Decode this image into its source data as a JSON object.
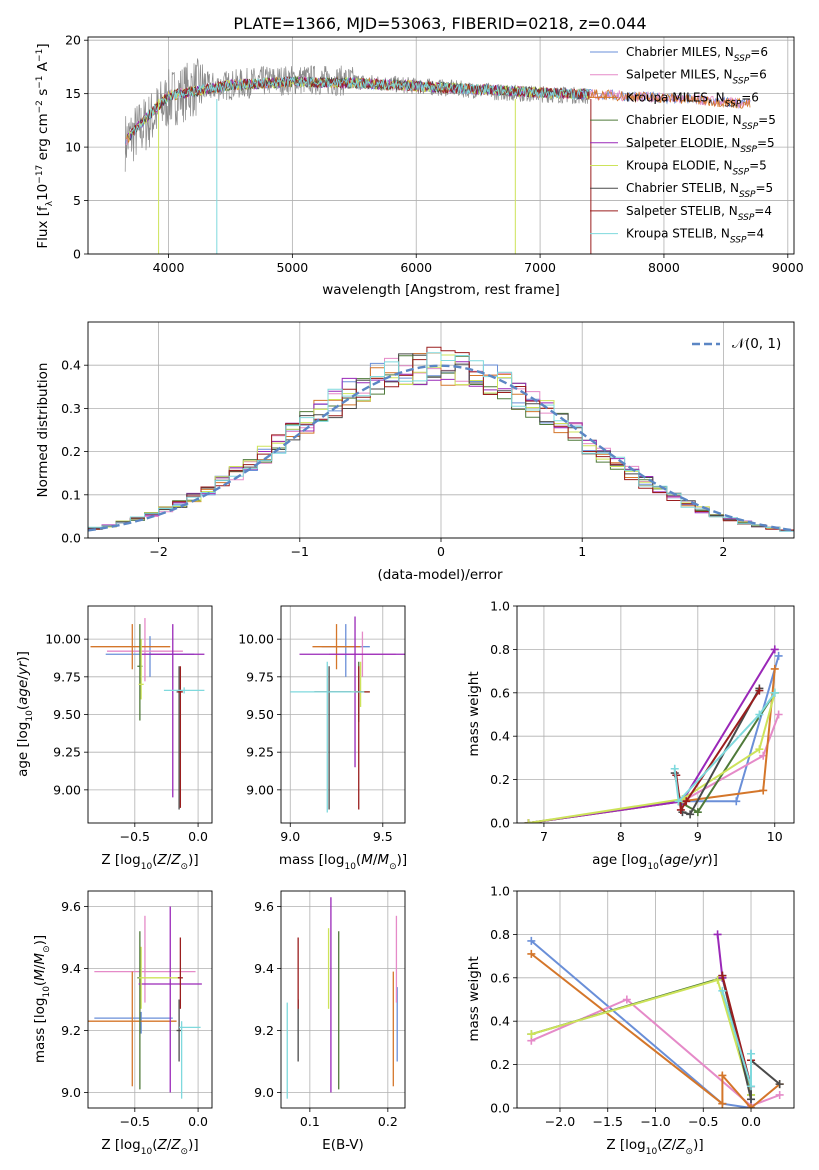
{
  "title": "PLATE=1366, MJD=53063, FIBERID=0218, z=0.044",
  "colors": {
    "Chabrier MILES": "#6a8fd8",
    "Salpeter MILES": "#e58ac8",
    "Kroupa MILES": "#d4762a",
    "Chabrier ELODIE": "#4f7a3a",
    "Salpeter ELODIE": "#9a28b8",
    "Kroupa ELODIE": "#cde35a",
    "Chabrier STELIB": "#4a4a4a",
    "Salpeter STELIB": "#9a1e1e",
    "Kroupa STELIB": "#7fd9dd"
  },
  "legend_spectrum": [
    {
      "name": "Chabrier MILES",
      "nssp": "6"
    },
    {
      "name": "Salpeter MILES",
      "nssp": "6"
    },
    {
      "name": "Kroupa MILES",
      "nssp": "6"
    },
    {
      "name": "Chabrier ELODIE",
      "nssp": "5"
    },
    {
      "name": "Salpeter ELODIE",
      "nssp": "5"
    },
    {
      "name": "Kroupa ELODIE",
      "nssp": "5"
    },
    {
      "name": "Chabrier STELIB",
      "nssp": "5"
    },
    {
      "name": "Salpeter STELIB",
      "nssp": "4"
    },
    {
      "name": "Kroupa STELIB",
      "nssp": "4"
    }
  ],
  "chart_data": [
    {
      "id": "spectrum",
      "type": "line",
      "xlabel": "wavelength [Angstrom, rest frame]",
      "ylabel": "Flux [f_λ 10^-17 erg cm^-2 s^-1 A^-1]",
      "xlim": [
        3350,
        9050
      ],
      "ylim": [
        0,
        20.3
      ],
      "xticks": [
        4000,
        5000,
        6000,
        7000,
        8000,
        9000
      ],
      "yticks": [
        0,
        5,
        10,
        15,
        20
      ],
      "data_continuum": {
        "x": [
          3650,
          3750,
          3850,
          4000,
          4200,
          4500,
          4800,
          5100,
          5400,
          5700,
          6000,
          6300,
          6600,
          6900,
          7200,
          7400
        ],
        "y": [
          10.5,
          11.5,
          12.5,
          14.5,
          15.5,
          15.8,
          16.2,
          16.3,
          16.2,
          16.0,
          15.7,
          15.5,
          15.2,
          15.0,
          14.9,
          14.8
        ]
      },
      "model_continuum": {
        "x": [
          3650,
          3800,
          4000,
          4500,
          5000,
          5500,
          6000,
          6500,
          7000,
          7500,
          8000,
          8400,
          8700
        ],
        "y": [
          10.5,
          12.5,
          14.8,
          15.8,
          16.1,
          16.0,
          15.7,
          15.4,
          15.1,
          14.9,
          14.6,
          14.3,
          14.0
        ]
      },
      "legend_position": "top-right"
    },
    {
      "id": "residuals",
      "type": "histogram",
      "xlabel": "(data-model)/error",
      "ylabel": "Normed distribution",
      "xlim": [
        -2.5,
        2.5
      ],
      "ylim": [
        0,
        0.5
      ],
      "xticks": [
        -2,
        -1,
        0,
        1,
        2
      ],
      "yticks": [
        0,
        0.1,
        0.2,
        0.3,
        0.4
      ],
      "reference": {
        "name": "𝒩(0, 1)",
        "mean": 0,
        "sigma": 1
      },
      "bins": {
        "start": -2.5,
        "width": 0.1,
        "count": 50
      },
      "legend_position": "top-right"
    },
    {
      "id": "age_vs_Z",
      "type": "errorbar",
      "xlabel": "Z [log10(Z/Z⊙)]",
      "ylabel": "age [log10(age/yr)]",
      "xlim": [
        -0.87,
        0.11
      ],
      "ylim": [
        8.78,
        10.22
      ],
      "xticks": [
        -0.5,
        0.0
      ],
      "yticks": [
        9.0,
        9.25,
        9.5,
        9.75,
        10.0
      ],
      "points": [
        {
          "series": "Chabrier MILES",
          "x": -0.38,
          "xerr": [
            0.35,
            0.35
          ],
          "y": 9.9,
          "yerr": [
            0.15,
            0.12
          ]
        },
        {
          "series": "Salpeter MILES",
          "x": -0.42,
          "xerr": [
            0.3,
            0.3
          ],
          "y": 9.92,
          "yerr": [
            0.2,
            0.22
          ]
        },
        {
          "series": "Kroupa MILES",
          "x": -0.52,
          "xerr": [
            0.33,
            0.3
          ],
          "y": 9.95,
          "yerr": [
            0.15,
            0.15
          ]
        },
        {
          "series": "Chabrier ELODIE",
          "x": -0.46,
          "xerr": [
            0.02,
            0.02
          ],
          "y": 9.82,
          "yerr": [
            0.36,
            0.28
          ]
        },
        {
          "series": "Salpeter ELODIE",
          "x": -0.2,
          "xerr": [
            0.25,
            0.25
          ],
          "y": 9.9,
          "yerr": [
            0.95,
            0.2
          ]
        },
        {
          "series": "Kroupa ELODIE",
          "x": -0.45,
          "xerr": [
            0.02,
            0.02
          ],
          "y": 9.7,
          "yerr": [
            0.1,
            0.3
          ]
        },
        {
          "series": "Chabrier STELIB",
          "x": -0.15,
          "xerr": [
            0.02,
            0.02
          ],
          "y": 9.65,
          "yerr": [
            0.78,
            0.17
          ]
        },
        {
          "series": "Salpeter STELIB",
          "x": -0.14,
          "xerr": [
            0.02,
            0.02
          ],
          "y": 9.65,
          "yerr": [
            0.77,
            0.17
          ]
        },
        {
          "series": "Kroupa STELIB",
          "x": -0.11,
          "xerr": [
            0.16,
            0.16
          ],
          "y": 9.66,
          "yerr": [
            0.02,
            0.02
          ]
        }
      ]
    },
    {
      "id": "age_vs_mass",
      "type": "errorbar",
      "xlabel": "mass [log10(M/M⊙)]",
      "ylabel": "",
      "xlim": [
        8.95,
        9.62
      ],
      "ylim": [
        8.78,
        10.22
      ],
      "xticks": [
        9.0,
        9.5
      ],
      "yticks": [
        9.0,
        9.25,
        9.5,
        9.75,
        10.0
      ],
      "points": [
        {
          "series": "Chabrier MILES",
          "x": 9.3,
          "xerr": [
            0.13,
            0.13
          ],
          "y": 9.95,
          "yerr": [
            0.2,
            0.15
          ]
        },
        {
          "series": "Salpeter MILES",
          "x": 9.39,
          "xerr": [
            0.18,
            0.18
          ],
          "y": 9.9,
          "yerr": [
            0.15,
            0.15
          ]
        },
        {
          "series": "Kroupa MILES",
          "x": 9.25,
          "xerr": [
            0.13,
            0.13
          ],
          "y": 9.95,
          "yerr": [
            0.15,
            0.15
          ]
        },
        {
          "series": "Chabrier ELODIE",
          "x": 9.37,
          "xerr": [
            0.02,
            0.02
          ],
          "y": 9.65,
          "yerr": [
            0.2,
            0.2
          ]
        },
        {
          "series": "Salpeter ELODIE",
          "x": 9.35,
          "xerr": [
            0.3,
            0.3
          ],
          "y": 9.9,
          "yerr": [
            0.75,
            0.25
          ]
        },
        {
          "series": "Kroupa ELODIE",
          "x": 9.38,
          "xerr": [
            0.05,
            0.05
          ],
          "y": 9.65,
          "yerr": [
            0.1,
            0.2
          ]
        },
        {
          "series": "Chabrier STELIB",
          "x": 9.21,
          "xerr": [
            0.08,
            0.12
          ],
          "y": 9.65,
          "yerr": [
            0.78,
            0.17
          ]
        },
        {
          "series": "Salpeter STELIB",
          "x": 9.37,
          "xerr": [
            0.02,
            0.06
          ],
          "y": 9.65,
          "yerr": [
            0.78,
            0.17
          ]
        },
        {
          "series": "Kroupa STELIB",
          "x": 9.2,
          "xerr": [
            0.2,
            0.2
          ],
          "y": 9.65,
          "yerr": [
            0.8,
            0.2
          ]
        }
      ]
    },
    {
      "id": "mass_weight_vs_age",
      "type": "line",
      "xlabel": "age [log10(age/yr)]",
      "ylabel": "mass weight",
      "xlim": [
        6.65,
        10.25
      ],
      "ylim": [
        0,
        1
      ],
      "xticks": [
        7,
        8,
        9,
        10
      ],
      "yticks": [
        0,
        0.2,
        0.4,
        0.6,
        0.8,
        1.0
      ],
      "series": [
        {
          "name": "Chabrier MILES",
          "x": [
            6.8,
            8.8,
            9.5,
            10.05
          ],
          "y": [
            0.0,
            0.1,
            0.1,
            0.77
          ]
        },
        {
          "name": "Salpeter MILES",
          "x": [
            6.8,
            8.8,
            9.85,
            10.05
          ],
          "y": [
            0.0,
            0.1,
            0.31,
            0.5
          ]
        },
        {
          "name": "Kroupa MILES",
          "x": [
            6.8,
            8.8,
            9.85,
            10.0
          ],
          "y": [
            0.0,
            0.1,
            0.15,
            0.71
          ]
        },
        {
          "name": "Chabrier ELODIE",
          "x": [
            6.8,
            8.75,
            9.0,
            10.0
          ],
          "y": [
            0.0,
            0.1,
            0.05,
            0.6
          ]
        },
        {
          "name": "Salpeter ELODIE",
          "x": [
            6.8,
            8.8,
            10.0
          ],
          "y": [
            0.0,
            0.1,
            0.8
          ]
        },
        {
          "name": "Kroupa ELODIE",
          "x": [
            6.8,
            8.8,
            9.8,
            10.0
          ],
          "y": [
            0.0,
            0.11,
            0.34,
            0.6
          ]
        },
        {
          "name": "Chabrier STELIB",
          "x": [
            8.7,
            8.8,
            8.9,
            9.8
          ],
          "y": [
            0.23,
            0.05,
            0.04,
            0.62
          ]
        },
        {
          "name": "Salpeter STELIB",
          "x": [
            8.72,
            8.78,
            8.85,
            9.8
          ],
          "y": [
            0.22,
            0.06,
            0.1,
            0.61
          ]
        },
        {
          "name": "Kroupa STELIB",
          "x": [
            8.7,
            8.75,
            9.8,
            10.0
          ],
          "y": [
            0.25,
            0.1,
            0.5,
            0.6
          ]
        }
      ]
    },
    {
      "id": "mass_vs_Z",
      "type": "errorbar",
      "xlabel": "Z [log10(Z/Z⊙)]",
      "ylabel": "mass [log10(M/M⊙)]",
      "xlim": [
        -0.87,
        0.11
      ],
      "ylim": [
        8.95,
        9.65
      ],
      "xticks": [
        -0.5,
        0.0
      ],
      "yticks": [
        9.0,
        9.2,
        9.4,
        9.6
      ],
      "points": [
        {
          "series": "Chabrier MILES",
          "x": -0.45,
          "xerr": [
            0.37,
            0.25
          ],
          "y": 9.24,
          "yerr": [
            0.05,
            0.02
          ]
        },
        {
          "series": "Salpeter MILES",
          "x": -0.42,
          "xerr": [
            0.4,
            0.4
          ],
          "y": 9.39,
          "yerr": [
            0.1,
            0.18
          ]
        },
        {
          "series": "Kroupa MILES",
          "x": -0.52,
          "xerr": [
            0.35,
            0.35
          ],
          "y": 9.23,
          "yerr": [
            0.21,
            0.16
          ]
        },
        {
          "series": "Chabrier ELODIE",
          "x": -0.46,
          "xerr": [
            0.02,
            0.02
          ],
          "y": 9.37,
          "yerr": [
            0.36,
            0.15
          ]
        },
        {
          "series": "Salpeter ELODIE",
          "x": -0.22,
          "xerr": [
            0.25,
            0.25
          ],
          "y": 9.35,
          "yerr": [
            0.35,
            0.25
          ]
        },
        {
          "series": "Kroupa ELODIE",
          "x": -0.45,
          "xerr": [
            0.02,
            0.3
          ],
          "y": 9.37,
          "yerr": [
            0.1,
            0.1
          ]
        },
        {
          "series": "Chabrier STELIB",
          "x": -0.15,
          "xerr": [
            0.02,
            0.02
          ],
          "y": 9.2,
          "yerr": [
            0.1,
            0.1
          ]
        },
        {
          "series": "Salpeter STELIB",
          "x": -0.14,
          "xerr": [
            0.02,
            0.02
          ],
          "y": 9.37,
          "yerr": [
            0.1,
            0.13
          ]
        },
        {
          "series": "Kroupa STELIB",
          "x": -0.13,
          "xerr": [
            0.02,
            0.15
          ],
          "y": 9.21,
          "yerr": [
            0.23,
            0.02
          ]
        }
      ]
    },
    {
      "id": "mass_vs_ebv",
      "type": "errorbar",
      "xlabel": "E(B-V)",
      "ylabel": "",
      "xlim": [
        0.063,
        0.222
      ],
      "ylim": [
        8.95,
        9.65
      ],
      "xticks": [
        0.1,
        0.2
      ],
      "yticks": [
        9.0,
        9.2,
        9.4,
        9.6
      ],
      "points": [
        {
          "series": "Chabrier MILES",
          "x": 0.212,
          "xerr": [
            0,
            0
          ],
          "y": 9.24,
          "yerr": [
            0.14,
            0.1
          ]
        },
        {
          "series": "Salpeter MILES",
          "x": 0.211,
          "xerr": [
            0,
            0
          ],
          "y": 9.39,
          "yerr": [
            0.1,
            0.18
          ]
        },
        {
          "series": "Kroupa MILES",
          "x": 0.207,
          "xerr": [
            0,
            0
          ],
          "y": 9.23,
          "yerr": [
            0.21,
            0.16
          ]
        },
        {
          "series": "Chabrier ELODIE",
          "x": 0.137,
          "xerr": [
            0,
            0
          ],
          "y": 9.37,
          "yerr": [
            0.36,
            0.15
          ]
        },
        {
          "series": "Salpeter ELODIE",
          "x": 0.127,
          "xerr": [
            0,
            0
          ],
          "y": 9.35,
          "yerr": [
            0.35,
            0.28
          ]
        },
        {
          "series": "Kroupa ELODIE",
          "x": 0.124,
          "xerr": [
            0,
            0
          ],
          "y": 9.37,
          "yerr": [
            0.1,
            0.16
          ]
        },
        {
          "series": "Chabrier STELIB",
          "x": 0.085,
          "xerr": [
            0,
            0
          ],
          "y": 9.2,
          "yerr": [
            0.1,
            0.1
          ]
        },
        {
          "series": "Salpeter STELIB",
          "x": 0.085,
          "xerr": [
            0,
            0
          ],
          "y": 9.37,
          "yerr": [
            0.1,
            0.13
          ]
        },
        {
          "series": "Kroupa STELIB",
          "x": 0.071,
          "xerr": [
            0,
            0
          ],
          "y": 9.21,
          "yerr": [
            0.23,
            0.08
          ]
        }
      ]
    },
    {
      "id": "mass_weight_vs_Z",
      "type": "line",
      "xlabel": "Z [log10(Z/Z⊙)]",
      "ylabel": "mass weight",
      "xlim": [
        -2.45,
        0.45
      ],
      "ylim": [
        0,
        1
      ],
      "xticks": [
        -2.0,
        -1.5,
        -1.0,
        -0.5,
        0.0
      ],
      "yticks": [
        0,
        0.2,
        0.4,
        0.6,
        0.8,
        1.0
      ],
      "series": [
        {
          "name": "Chabrier MILES",
          "x": [
            -2.3,
            -0.3,
            0.0,
            0.0
          ],
          "y": [
            0.77,
            0.02,
            0.0,
            0.25
          ]
        },
        {
          "name": "Salpeter MILES",
          "x": [
            -2.3,
            -1.3,
            0.0,
            0.3
          ],
          "y": [
            0.31,
            0.5,
            0.01,
            0.06
          ]
        },
        {
          "name": "Kroupa MILES",
          "x": [
            -2.3,
            -0.3,
            -0.3,
            0.0,
            0.3
          ],
          "y": [
            0.71,
            0.02,
            0.15,
            0.0,
            0.11
          ]
        },
        {
          "name": "Chabrier ELODIE",
          "x": [
            -2.3,
            -0.3,
            0.0
          ],
          "y": [
            0.34,
            0.6,
            0.06
          ]
        },
        {
          "name": "Salpeter ELODIE",
          "x": [
            -0.35,
            -0.3,
            0.0
          ],
          "y": [
            0.8,
            0.6,
            0.1
          ]
        },
        {
          "name": "Kroupa ELODIE",
          "x": [
            -2.3,
            -0.35,
            0.0
          ],
          "y": [
            0.34,
            0.59,
            0.06
          ]
        },
        {
          "name": "Chabrier STELIB",
          "x": [
            -0.3,
            0.0,
            0.0,
            0.3
          ],
          "y": [
            0.61,
            0.04,
            0.22,
            0.11
          ]
        },
        {
          "name": "Salpeter STELIB",
          "x": [
            -0.3,
            0.0,
            0.0
          ],
          "y": [
            0.61,
            0.1,
            0.22
          ]
        },
        {
          "name": "Kroupa STELIB",
          "x": [
            -0.3,
            0.0,
            0.0
          ],
          "y": [
            0.54,
            0.1,
            0.25
          ]
        }
      ]
    }
  ]
}
